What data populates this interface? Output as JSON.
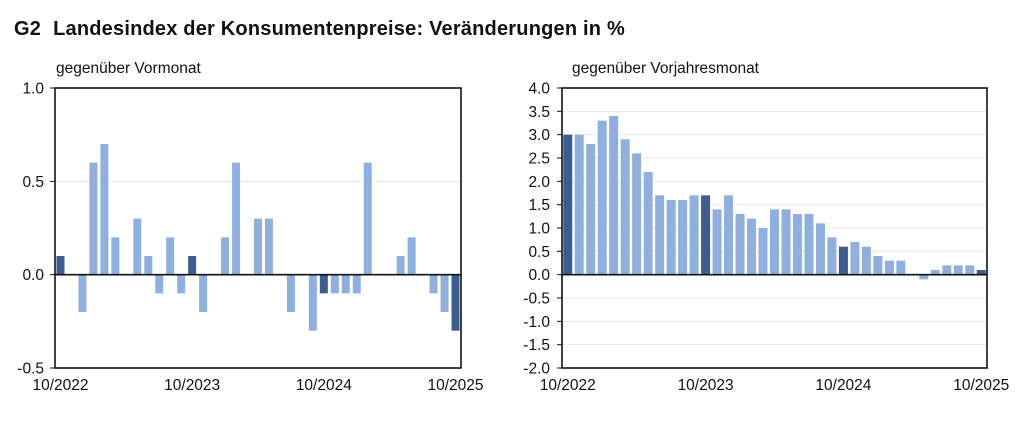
{
  "header": {
    "figure_number": "G2",
    "title": "Landesindex der Konsumentenpreise: Veränderungen in %"
  },
  "colors": {
    "bar_regular": "#8fb0df",
    "bar_highlight": "#3d5c8f",
    "frame": "#111111",
    "grid": "#e8e8e8"
  },
  "chart_data": [
    {
      "type": "bar",
      "title": "gegenüber Vormonat",
      "xlabel": "",
      "ylabel": "",
      "ylim": [
        -0.5,
        1.0
      ],
      "yticks": [
        "1.0",
        "0.5",
        "0.0",
        "-0.5"
      ],
      "ytick_values": [
        1.0,
        0.5,
        0.0,
        -0.5
      ],
      "xtick_labels": [
        "10/2022",
        "10/2023",
        "10/2024",
        "10/2025"
      ],
      "grid": true,
      "legend": null,
      "categories": [
        "10/2022",
        "11/2022",
        "12/2022",
        "01/2023",
        "02/2023",
        "03/2023",
        "04/2023",
        "05/2023",
        "06/2023",
        "07/2023",
        "08/2023",
        "09/2023",
        "10/2023",
        "11/2023",
        "12/2023",
        "01/2024",
        "02/2024",
        "03/2024",
        "04/2024",
        "05/2024",
        "06/2024",
        "07/2024",
        "08/2024",
        "09/2024",
        "10/2024",
        "11/2024",
        "12/2024",
        "01/2025",
        "02/2025",
        "03/2025",
        "04/2025",
        "05/2025",
        "06/2025",
        "07/2025",
        "08/2025",
        "09/2025",
        "10/2025"
      ],
      "values": [
        0.1,
        0.0,
        -0.2,
        0.6,
        0.7,
        0.2,
        0.0,
        0.3,
        0.1,
        -0.1,
        0.2,
        -0.1,
        0.1,
        -0.2,
        0.0,
        0.2,
        0.6,
        0.0,
        0.3,
        0.3,
        0.0,
        -0.2,
        0.0,
        -0.3,
        -0.1,
        -0.1,
        -0.1,
        -0.1,
        0.6,
        0.0,
        0.0,
        0.1,
        0.2,
        0.0,
        -0.1,
        -0.2,
        -0.3
      ],
      "highlighted": [
        "10/2022",
        "10/2023",
        "10/2024",
        "10/2025"
      ]
    },
    {
      "type": "bar",
      "title": "gegenüber Vorjahresmonat",
      "xlabel": "",
      "ylabel": "",
      "ylim": [
        -2.0,
        4.0
      ],
      "yticks": [
        "4.0",
        "3.5",
        "3.0",
        "2.5",
        "2.0",
        "1.5",
        "1.0",
        "0.5",
        "0.0",
        "-0.5",
        "-1.0",
        "-1.5",
        "-2.0"
      ],
      "ytick_values": [
        4.0,
        3.5,
        3.0,
        2.5,
        2.0,
        1.5,
        1.0,
        0.5,
        0.0,
        -0.5,
        -1.0,
        -1.5,
        -2.0
      ],
      "xtick_labels": [
        "10/2022",
        "10/2023",
        "10/2024",
        "10/2025"
      ],
      "grid": true,
      "legend": null,
      "categories": [
        "10/2022",
        "11/2022",
        "12/2022",
        "01/2023",
        "02/2023",
        "03/2023",
        "04/2023",
        "05/2023",
        "06/2023",
        "07/2023",
        "08/2023",
        "09/2023",
        "10/2023",
        "11/2023",
        "12/2023",
        "01/2024",
        "02/2024",
        "03/2024",
        "04/2024",
        "05/2024",
        "06/2024",
        "07/2024",
        "08/2024",
        "09/2024",
        "10/2024",
        "11/2024",
        "12/2024",
        "01/2025",
        "02/2025",
        "03/2025",
        "04/2025",
        "05/2025",
        "06/2025",
        "07/2025",
        "08/2025",
        "09/2025",
        "10/2025"
      ],
      "values": [
        3.0,
        3.0,
        2.8,
        3.3,
        3.4,
        2.9,
        2.6,
        2.2,
        1.7,
        1.6,
        1.6,
        1.7,
        1.7,
        1.4,
        1.7,
        1.3,
        1.2,
        1.0,
        1.4,
        1.4,
        1.3,
        1.3,
        1.1,
        0.8,
        0.6,
        0.7,
        0.6,
        0.4,
        0.3,
        0.3,
        0.0,
        -0.1,
        0.1,
        0.2,
        0.2,
        0.2,
        0.1
      ],
      "highlighted": [
        "10/2022",
        "10/2023",
        "10/2024",
        "10/2025"
      ]
    }
  ]
}
